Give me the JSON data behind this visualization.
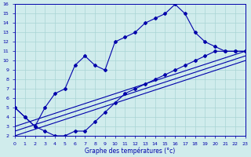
{
  "background_color": "#d0ecec",
  "grid_color": "#a8d4d4",
  "line_color": "#0000aa",
  "xlim": [
    0,
    23
  ],
  "ylim": [
    2,
    16
  ],
  "xticks": [
    0,
    1,
    2,
    3,
    4,
    5,
    6,
    7,
    8,
    9,
    10,
    11,
    12,
    13,
    14,
    15,
    16,
    17,
    18,
    19,
    20,
    21,
    22,
    23
  ],
  "yticks": [
    2,
    3,
    4,
    5,
    6,
    7,
    8,
    9,
    10,
    11,
    12,
    13,
    14,
    15,
    16
  ],
  "xlabel": "Graphe des températures (°c)",
  "curve_upper_x": [
    0,
    1,
    2,
    3,
    4,
    5,
    6,
    7,
    8,
    9,
    10,
    11,
    12,
    13,
    14,
    15,
    16,
    17,
    18,
    19,
    20,
    21,
    22,
    23
  ],
  "curve_upper_y": [
    5.0,
    4.0,
    3.0,
    5.0,
    6.5,
    7.0,
    9.5,
    10.5,
    9.5,
    9.0,
    12.0,
    12.5,
    13.0,
    14.0,
    14.5,
    15.0,
    16.0,
    15.0,
    13.0,
    12.0,
    11.5,
    11.0,
    11.0,
    11.0
  ],
  "curve_lower_x": [
    0,
    1,
    2,
    3,
    4,
    5,
    6,
    7,
    8,
    9,
    10,
    11,
    12,
    13,
    14,
    15,
    16,
    17,
    18,
    19,
    20,
    21,
    22,
    23
  ],
  "curve_lower_y": [
    5.0,
    4.0,
    3.0,
    2.5,
    2.0,
    2.0,
    2.5,
    2.5,
    3.5,
    4.5,
    5.5,
    6.5,
    7.0,
    7.5,
    8.0,
    8.5,
    9.0,
    9.5,
    10.0,
    10.5,
    11.0,
    11.0,
    11.0,
    11.0
  ],
  "trend1_x": [
    0,
    23
  ],
  "trend1_y": [
    3.0,
    11.0
  ],
  "trend2_x": [
    0,
    23
  ],
  "trend2_y": [
    2.5,
    10.5
  ],
  "trend3_x": [
    0,
    23
  ],
  "trend3_y": [
    2.0,
    10.0
  ]
}
